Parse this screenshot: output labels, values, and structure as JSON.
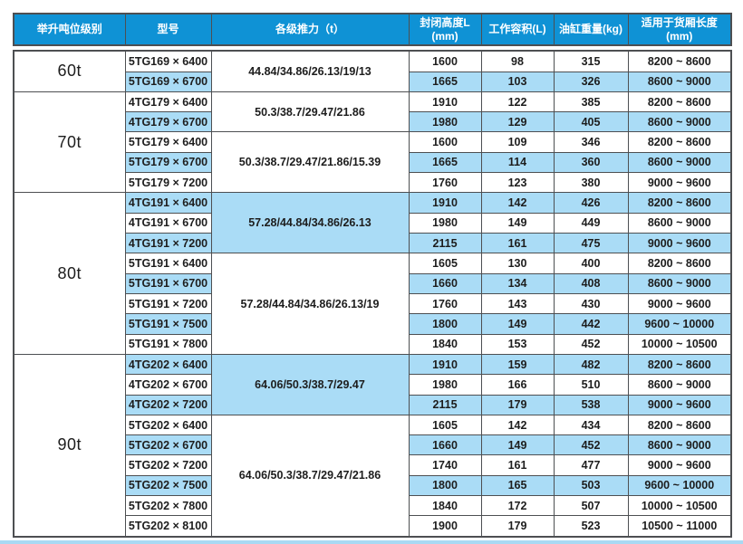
{
  "colors": {
    "header_bg": "#0f92d5",
    "row_alt_bg": "#aadcf6",
    "border": "#4d4f52",
    "text": "#1d1d1d",
    "footer_bar": "#a9d9f3"
  },
  "table": {
    "headers": [
      {
        "label": "举升吨位级别",
        "sub": ""
      },
      {
        "label": "型号",
        "sub": ""
      },
      {
        "label": "各级推力（t）",
        "sub": ""
      },
      {
        "label": "封闭高度L",
        "sub": "(mm)"
      },
      {
        "label": "工作容积(L)",
        "sub": ""
      },
      {
        "label": "油缸重量(kg)",
        "sub": ""
      },
      {
        "label": "适用于货厢长度",
        "sub": "(mm)"
      }
    ],
    "groups": [
      {
        "tonnage": "60t",
        "subgroups": [
          {
            "thrust": "44.84/34.86/26.13/19/13",
            "thrust_shaded": false,
            "rows": [
              {
                "model": "5TG169 × 6400",
                "closed_height": "1600",
                "volume": "98",
                "weight": "315",
                "box_length": "8200 ~ 8600",
                "shaded": false
              },
              {
                "model": "5TG169 × 6700",
                "closed_height": "1665",
                "volume": "103",
                "weight": "326",
                "box_length": "8600 ~ 9000",
                "shaded": true
              }
            ]
          }
        ]
      },
      {
        "tonnage": "70t",
        "subgroups": [
          {
            "thrust": "50.3/38.7/29.47/21.86",
            "thrust_shaded": false,
            "rows": [
              {
                "model": "4TG179 × 6400",
                "closed_height": "1910",
                "volume": "122",
                "weight": "385",
                "box_length": "8200 ~ 8600",
                "shaded": false
              },
              {
                "model": "4TG179 × 6700",
                "closed_height": "1980",
                "volume": "129",
                "weight": "405",
                "box_length": "8600 ~ 9000",
                "shaded": true
              }
            ]
          },
          {
            "thrust": "50.3/38.7/29.47/21.86/15.39",
            "thrust_shaded": false,
            "rows": [
              {
                "model": "5TG179 × 6400",
                "closed_height": "1600",
                "volume": "109",
                "weight": "346",
                "box_length": "8200 ~ 8600",
                "shaded": false
              },
              {
                "model": "5TG179 × 6700",
                "closed_height": "1665",
                "volume": "114",
                "weight": "360",
                "box_length": "8600 ~ 9000",
                "shaded": true
              },
              {
                "model": "5TG179 × 7200",
                "closed_height": "1760",
                "volume": "123",
                "weight": "380",
                "box_length": "9000 ~ 9600",
                "shaded": false
              }
            ]
          }
        ]
      },
      {
        "tonnage": "80t",
        "subgroups": [
          {
            "thrust": "57.28/44.84/34.86/26.13",
            "thrust_shaded": true,
            "rows": [
              {
                "model": "4TG191 × 6400",
                "closed_height": "1910",
                "volume": "142",
                "weight": "426",
                "box_length": "8200 ~ 8600",
                "shaded": true
              },
              {
                "model": "4TG191 × 6700",
                "closed_height": "1980",
                "volume": "149",
                "weight": "449",
                "box_length": "8600 ~ 9000",
                "shaded": false
              },
              {
                "model": "4TG191 × 7200",
                "closed_height": "2115",
                "volume": "161",
                "weight": "475",
                "box_length": "9000 ~ 9600",
                "shaded": true
              }
            ]
          },
          {
            "thrust": "57.28/44.84/34.86/26.13/19",
            "thrust_shaded": false,
            "rows": [
              {
                "model": "5TG191 × 6400",
                "closed_height": "1605",
                "volume": "130",
                "weight": "400",
                "box_length": "8200 ~ 8600",
                "shaded": false
              },
              {
                "model": "5TG191 × 6700",
                "closed_height": "1660",
                "volume": "134",
                "weight": "408",
                "box_length": "8600 ~ 9000",
                "shaded": true
              },
              {
                "model": "5TG191 × 7200",
                "closed_height": "1760",
                "volume": "143",
                "weight": "430",
                "box_length": "9000 ~ 9600",
                "shaded": false
              },
              {
                "model": "5TG191 × 7500",
                "closed_height": "1800",
                "volume": "149",
                "weight": "442",
                "box_length": "9600 ~ 10000",
                "shaded": true
              },
              {
                "model": "5TG191 × 7800",
                "closed_height": "1840",
                "volume": "153",
                "weight": "452",
                "box_length": "10000 ~ 10500",
                "shaded": false
              }
            ]
          }
        ]
      },
      {
        "tonnage": "90t",
        "subgroups": [
          {
            "thrust": "64.06/50.3/38.7/29.47",
            "thrust_shaded": true,
            "rows": [
              {
                "model": "4TG202 × 6400",
                "closed_height": "1910",
                "volume": "159",
                "weight": "482",
                "box_length": "8200 ~ 8600",
                "shaded": true
              },
              {
                "model": "4TG202 × 6700",
                "closed_height": "1980",
                "volume": "166",
                "weight": "510",
                "box_length": "8600 ~ 9000",
                "shaded": false
              },
              {
                "model": "4TG202 × 7200",
                "closed_height": "2115",
                "volume": "179",
                "weight": "538",
                "box_length": "9000 ~ 9600",
                "shaded": true
              }
            ]
          },
          {
            "thrust": "64.06/50.3/38.7/29.47/21.86",
            "thrust_shaded": false,
            "rows": [
              {
                "model": "5TG202 × 6400",
                "closed_height": "1605",
                "volume": "142",
                "weight": "434",
                "box_length": "8200 ~ 8600",
                "shaded": false
              },
              {
                "model": "5TG202 × 6700",
                "closed_height": "1660",
                "volume": "149",
                "weight": "452",
                "box_length": "8600 ~ 9000",
                "shaded": true
              },
              {
                "model": "5TG202 × 7200",
                "closed_height": "1740",
                "volume": "161",
                "weight": "477",
                "box_length": "9000 ~ 9600",
                "shaded": false
              },
              {
                "model": "5TG202 × 7500",
                "closed_height": "1800",
                "volume": "165",
                "weight": "503",
                "box_length": "9600 ~ 10000",
                "shaded": true
              },
              {
                "model": "5TG202 × 7800",
                "closed_height": "1840",
                "volume": "172",
                "weight": "507",
                "box_length": "10000 ~ 10500",
                "shaded": false
              },
              {
                "model": "5TG202 × 8100",
                "closed_height": "1900",
                "volume": "179",
                "weight": "523",
                "box_length": "10500 ~ 11000",
                "shaded": false
              }
            ]
          }
        ]
      }
    ]
  }
}
